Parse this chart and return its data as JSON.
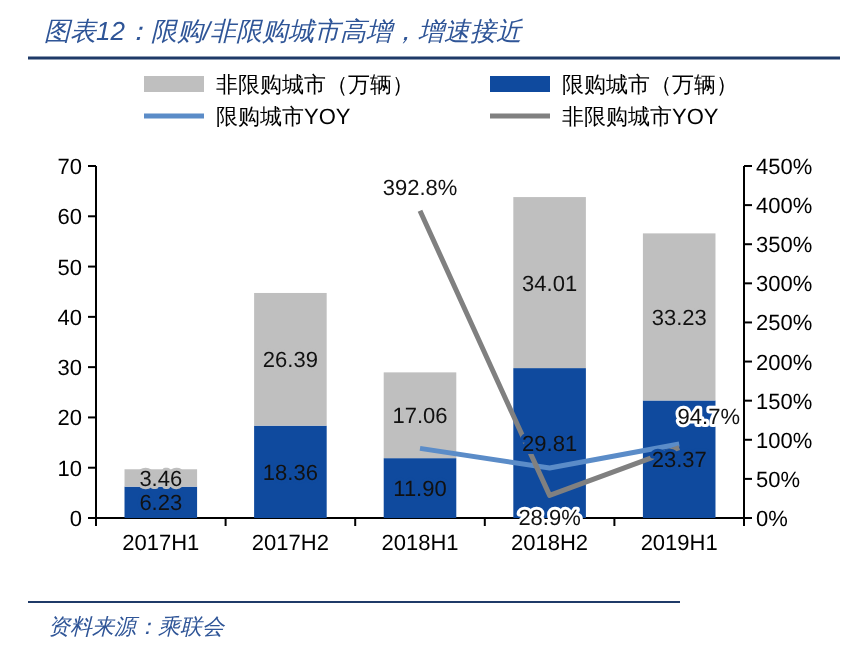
{
  "chart_data": {
    "type": "bar",
    "title": "图表12：限购/非限购城市高增，增速接近",
    "categories": [
      "2017H1",
      "2017H2",
      "2018H1",
      "2018H2",
      "2019H1"
    ],
    "stacked": true,
    "legend": "top",
    "series": [
      {
        "name": "限购城市（万辆）",
        "color": "#0f4a9e",
        "values": [
          6.23,
          18.36,
          11.9,
          29.81,
          23.37
        ],
        "value_labels": [
          "6.23",
          "18.36",
          "11.90",
          "29.81",
          "23.37"
        ]
      },
      {
        "name": "非限购城市（万辆）",
        "color": "#bfbfbf",
        "values": [
          3.46,
          26.39,
          17.06,
          34.01,
          33.23
        ],
        "value_labels": [
          "3.46",
          "26.39",
          "17.06",
          "34.01",
          "33.23"
        ]
      },
      {
        "name": "限购城市YOY",
        "type": "line",
        "axis": "y2",
        "color": "#5b8cc8",
        "values": [
          null,
          null,
          89,
          64,
          94.7
        ],
        "value_labels": [
          null,
          null,
          null,
          null,
          "94.7%"
        ]
      },
      {
        "name": "非限购城市YOY",
        "type": "line",
        "axis": "y2",
        "color": "#808080",
        "values": [
          null,
          null,
          392.8,
          28.9,
          90
        ],
        "value_labels": [
          null,
          null,
          "392.8%",
          "28.9%",
          null
        ]
      }
    ],
    "ylim": [
      0,
      70
    ],
    "yticks": [
      0,
      10,
      20,
      30,
      40,
      50,
      60,
      70
    ],
    "y2lim": [
      0,
      450
    ],
    "y2ticks": [
      {
        "value": 0,
        "label": "0%"
      },
      {
        "value": 50,
        "label": "50%"
      },
      {
        "value": 100,
        "label": "100%"
      },
      {
        "value": 150,
        "label": "150%"
      },
      {
        "value": 200,
        "label": "200%"
      },
      {
        "value": 250,
        "label": "250%"
      },
      {
        "value": 300,
        "label": "300%"
      },
      {
        "value": 350,
        "label": "350%"
      },
      {
        "value": 400,
        "label": "400%"
      },
      {
        "value": 450,
        "label": "450%"
      }
    ],
    "annotations": [
      "资料来源：乘联会"
    ]
  }
}
